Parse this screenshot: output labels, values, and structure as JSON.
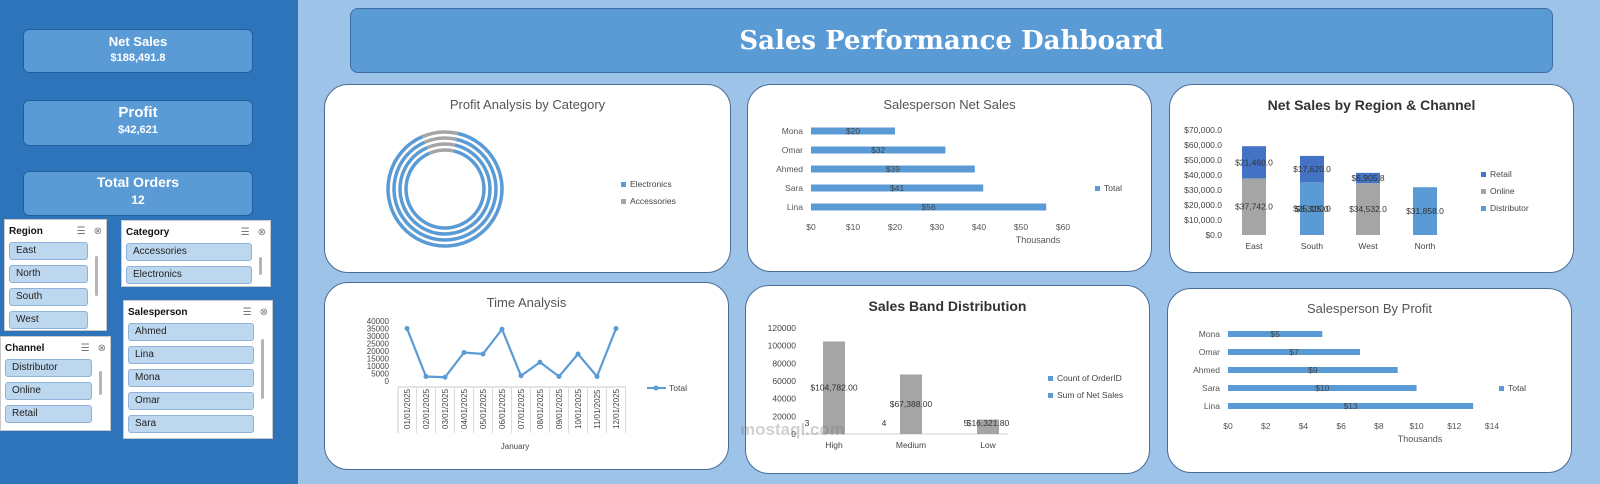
{
  "kpis": {
    "net_sales": {
      "title": "Net Sales",
      "value": "$188,491.8"
    },
    "profit": {
      "title": "Profit",
      "value": "$42,621"
    },
    "total_orders": {
      "title": "Total Orders",
      "value": "12"
    }
  },
  "slicers": {
    "region": {
      "title": "Region",
      "items": [
        "East",
        "North",
        "South",
        "West"
      ]
    },
    "category": {
      "title": "Category",
      "items": [
        "Accessories",
        "Electronics"
      ]
    },
    "channel": {
      "title": "Channel",
      "items": [
        "Distributor",
        "Online",
        "Retail"
      ]
    },
    "salesperson": {
      "title": "Salesperson",
      "items": [
        "Ahmed",
        "Lina",
        "Mona",
        "Omar",
        "Sara"
      ]
    }
  },
  "dashboard_title": "Sales Performance Dahboard",
  "watermark": "mostaql.com",
  "colors": {
    "blue": "#5b9bd5",
    "dark_blue": "#4472c4",
    "gray": "#a5a5a5"
  },
  "chart_data": [
    {
      "id": "profit_by_category",
      "type": "pie",
      "title": "Profit Analysis by Category",
      "labels": [
        "Electronics",
        "Accessories"
      ],
      "values": [
        90,
        10
      ]
    },
    {
      "id": "salesperson_net_sales",
      "type": "bar",
      "orientation": "horizontal",
      "title": "Salesperson Net Sales",
      "categories": [
        "Lina",
        "Sara",
        "Ahmed",
        "Omar",
        "Mona"
      ],
      "values": [
        56,
        41,
        39,
        32,
        20
      ],
      "data_labels": [
        "$56",
        "$41",
        "$39",
        "$32",
        "$20"
      ],
      "xlim": [
        0,
        60
      ],
      "x_ticks": [
        "$0",
        "$10",
        "$20",
        "$30",
        "$40",
        "$50",
        "$60"
      ],
      "xlabel": "Thousands",
      "series_name": "Total"
    },
    {
      "id": "net_sales_region_channel",
      "type": "bar",
      "stacked": true,
      "title": "Net Sales by Region & Channel",
      "categories": [
        "East",
        "South",
        "West",
        "North"
      ],
      "series": [
        {
          "name": "Retail",
          "values": [
            21460,
            17620,
            6905.8,
            0
          ],
          "labels": [
            "$21,460.0",
            "$17,620.0",
            "$6,905.8",
            ""
          ]
        },
        {
          "name": "Online",
          "values": [
            37742,
            0,
            34532,
            0
          ],
          "labels": [
            "$37,742.0",
            "",
            "$34,532.0",
            ""
          ]
        },
        {
          "name": "Distributor",
          "values": [
            0,
            35100,
            0,
            31858
          ],
          "labels": [
            "",
            "$35,100.0",
            "",
            "$31,858.0"
          ]
        }
      ],
      "extra_labels": [
        {
          "category": "South",
          "text": "$3,325.0"
        }
      ],
      "ylim": [
        0,
        70000
      ],
      "y_ticks": [
        "$0.0",
        "$10,000.0",
        "$20,000.0",
        "$30,000.0",
        "$40,000.0",
        "$50,000.0",
        "$60,000.0",
        "$70,000.0"
      ]
    },
    {
      "id": "time_analysis",
      "type": "line",
      "title": "Time Analysis",
      "x": [
        "01/01/2025",
        "02/01/2025",
        "03/01/2025",
        "04/01/2025",
        "05/01/2025",
        "06/01/2025",
        "07/01/2025",
        "08/01/2025",
        "09/01/2025",
        "10/01/2025",
        "11/01/2025",
        "12/01/2025"
      ],
      "values": [
        35000,
        3000,
        2500,
        19000,
        18000,
        34500,
        3500,
        12500,
        3000,
        18000,
        3000,
        35000
      ],
      "ylim": [
        0,
        40000
      ],
      "y_ticks": [
        "0",
        "5000",
        "10000",
        "15000",
        "20000",
        "25000",
        "30000",
        "35000",
        "40000"
      ],
      "xlabel": "January",
      "series_name": "Total"
    },
    {
      "id": "sales_band_distribution",
      "type": "bar",
      "title": "Sales Band Distribution",
      "categories": [
        "High",
        "Medium",
        "Low"
      ],
      "series": [
        {
          "name": "Count of OrderID",
          "values": [
            3,
            4,
            5
          ],
          "labels": [
            "3",
            "4",
            "5"
          ]
        },
        {
          "name": "Sum of Net Sales",
          "values": [
            104782,
            67388,
            16321.8
          ],
          "labels": [
            "$104,782.00",
            "$67,388.00",
            "$16,321.80"
          ]
        }
      ],
      "ylim": [
        0,
        120000
      ],
      "y_ticks": [
        "0",
        "20000",
        "40000",
        "60000",
        "80000",
        "100000",
        "120000"
      ]
    },
    {
      "id": "salesperson_by_profit",
      "type": "bar",
      "orientation": "horizontal",
      "title": "Salesperson By Profit",
      "categories": [
        "Lina",
        "Sara",
        "Ahmed",
        "Omar",
        "Mona"
      ],
      "values": [
        13,
        10,
        9,
        7,
        5
      ],
      "data_labels": [
        "$13",
        "$10",
        "$9",
        "$7",
        "$5"
      ],
      "xlim": [
        0,
        14
      ],
      "x_ticks": [
        "$0",
        "$2",
        "$4",
        "$6",
        "$8",
        "$10",
        "$12",
        "$14"
      ],
      "xlabel": "Thousands",
      "series_name": "Total"
    }
  ]
}
